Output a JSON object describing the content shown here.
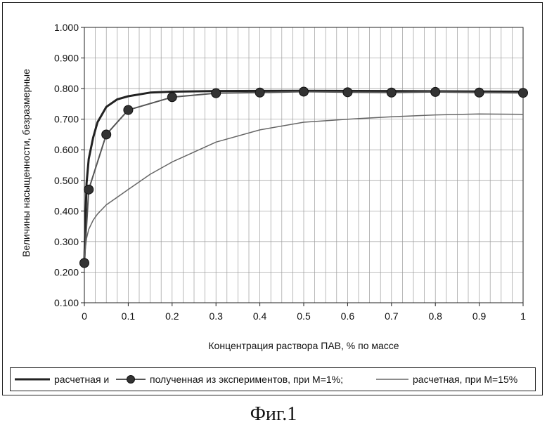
{
  "chart_data": {
    "type": "line",
    "title": "",
    "xlabel": "Концентрация раствора ПАВ, % по массе",
    "ylabel": "Величины насыщенности, безразмерные",
    "xlim": [
      0,
      1
    ],
    "ylim": [
      0.1,
      1.0
    ],
    "grid": true,
    "legend_position": "bottom",
    "x_ticks": [
      0,
      0.1,
      0.2,
      0.3,
      0.4,
      0.5,
      0.6,
      0.7,
      0.8,
      0.9,
      1
    ],
    "x_tick_labels": [
      "0",
      "0.1",
      "0.2",
      "0.3",
      "0.4",
      "0.5",
      "0.6",
      "0.7",
      "0.8",
      "0.9",
      "1"
    ],
    "y_ticks": [
      0.1,
      0.2,
      0.3,
      0.4,
      0.5,
      0.6,
      0.7,
      0.8,
      0.9,
      1.0
    ],
    "y_tick_labels": [
      "0.100",
      "0.200",
      "0.300",
      "0.400",
      "0.500",
      "0.600",
      "0.700",
      "0.800",
      "0.900",
      "1.000"
    ],
    "series": [
      {
        "name": "расчетная и",
        "style": "thick-line",
        "color": "#222222",
        "x": [
          0,
          0.005,
          0.01,
          0.02,
          0.03,
          0.05,
          0.075,
          0.1,
          0.15,
          0.2,
          0.3,
          0.5,
          0.7,
          1.0
        ],
        "y": [
          0.24,
          0.49,
          0.57,
          0.64,
          0.69,
          0.74,
          0.765,
          0.775,
          0.787,
          0.79,
          0.792,
          0.793,
          0.792,
          0.79
        ]
      },
      {
        "name": "полученная из экспериментов, при М=1%;",
        "style": "line-markers",
        "color": "#555555",
        "marker_color": "#333333",
        "x": [
          0,
          0.01,
          0.05,
          0.1,
          0.2,
          0.3,
          0.4,
          0.5,
          0.6,
          0.7,
          0.8,
          0.9,
          1.0
        ],
        "y": [
          0.23,
          0.47,
          0.65,
          0.73,
          0.772,
          0.785,
          0.787,
          0.79,
          0.788,
          0.787,
          0.789,
          0.787,
          0.786
        ]
      },
      {
        "name": "расчетная, при М=15%",
        "style": "thin-line",
        "color": "#666666",
        "x": [
          0,
          0.005,
          0.01,
          0.02,
          0.03,
          0.05,
          0.075,
          0.1,
          0.15,
          0.2,
          0.3,
          0.4,
          0.5,
          0.6,
          0.7,
          0.8,
          0.9,
          1.0
        ],
        "y": [
          0.25,
          0.31,
          0.34,
          0.37,
          0.39,
          0.42,
          0.445,
          0.47,
          0.52,
          0.56,
          0.625,
          0.665,
          0.69,
          0.7,
          0.708,
          0.714,
          0.717,
          0.716
        ]
      }
    ]
  },
  "legend": {
    "item1": "расчетная и",
    "item2": "полученная из экспериментов, при М=1%;",
    "item3": "расчетная, при М=15%"
  },
  "caption": "Фиг.1"
}
